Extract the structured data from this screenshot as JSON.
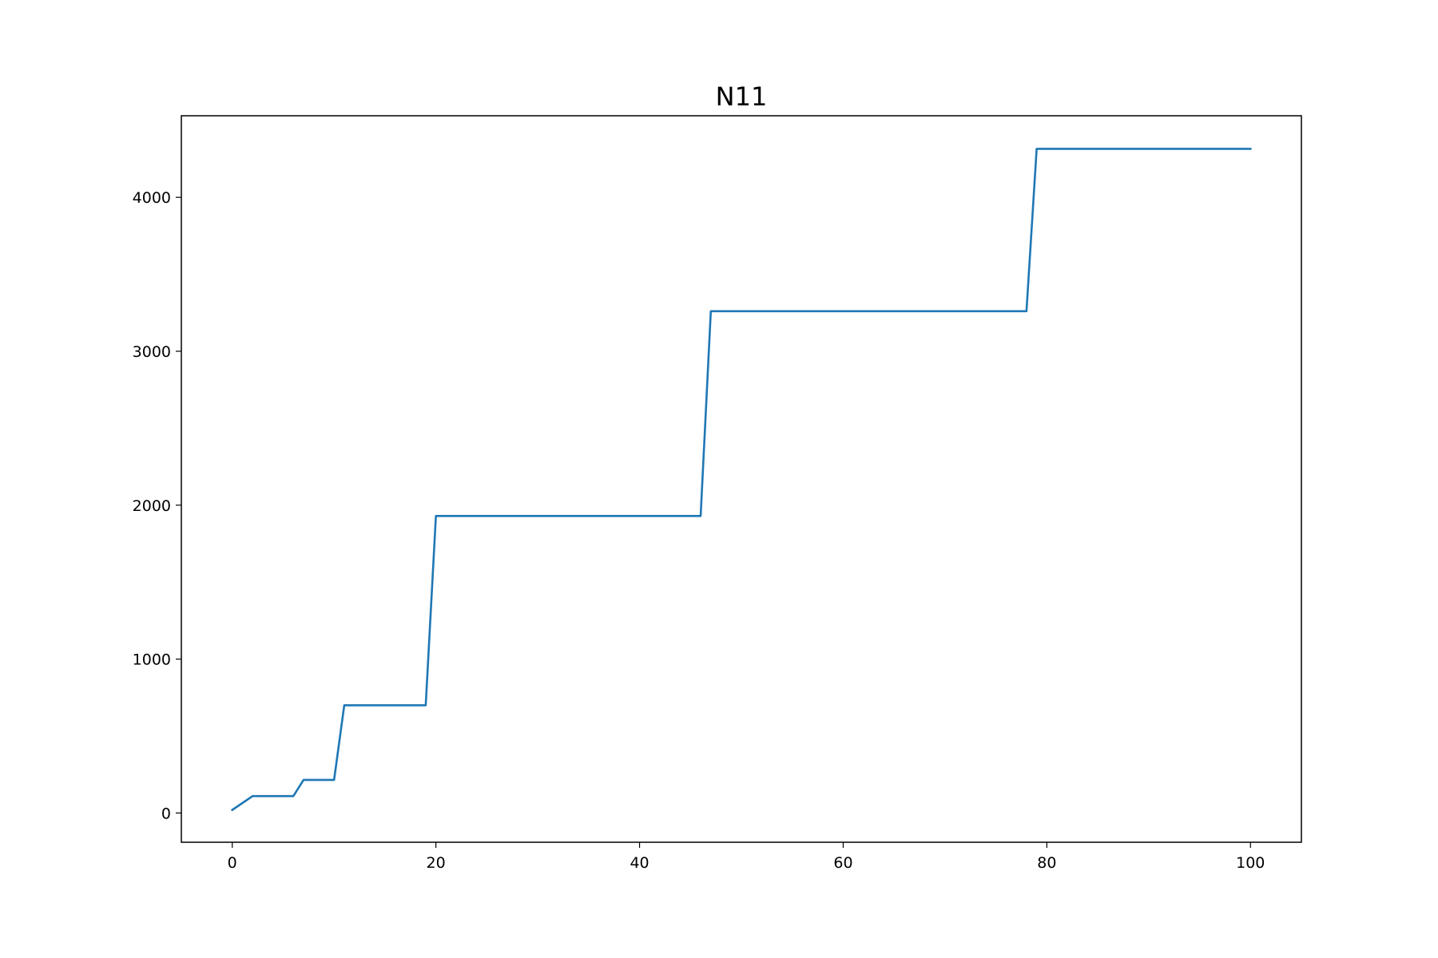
{
  "chart_data": {
    "type": "line",
    "title": "N11",
    "xlabel": "",
    "ylabel": "",
    "xlim": [
      -5,
      105
    ],
    "ylim": [
      -190,
      4530
    ],
    "grid": false,
    "legend": "none",
    "x_ticks": [
      0,
      20,
      40,
      60,
      80,
      100
    ],
    "y_ticks": [
      0,
      1000,
      2000,
      3000,
      4000
    ],
    "x_tick_labels": [
      "0",
      "20",
      "40",
      "60",
      "80",
      "100"
    ],
    "y_tick_labels": [
      "0",
      "1000",
      "2000",
      "3000",
      "4000"
    ],
    "series": [
      {
        "name": "N11",
        "color": "#1f77b4",
        "x": [
          0,
          2,
          6,
          7,
          10,
          11,
          19,
          20,
          46,
          47,
          78,
          79,
          100
        ],
        "y": [
          20,
          110,
          110,
          215,
          215,
          700,
          700,
          1930,
          1930,
          3260,
          3260,
          4315,
          4315
        ]
      }
    ]
  }
}
